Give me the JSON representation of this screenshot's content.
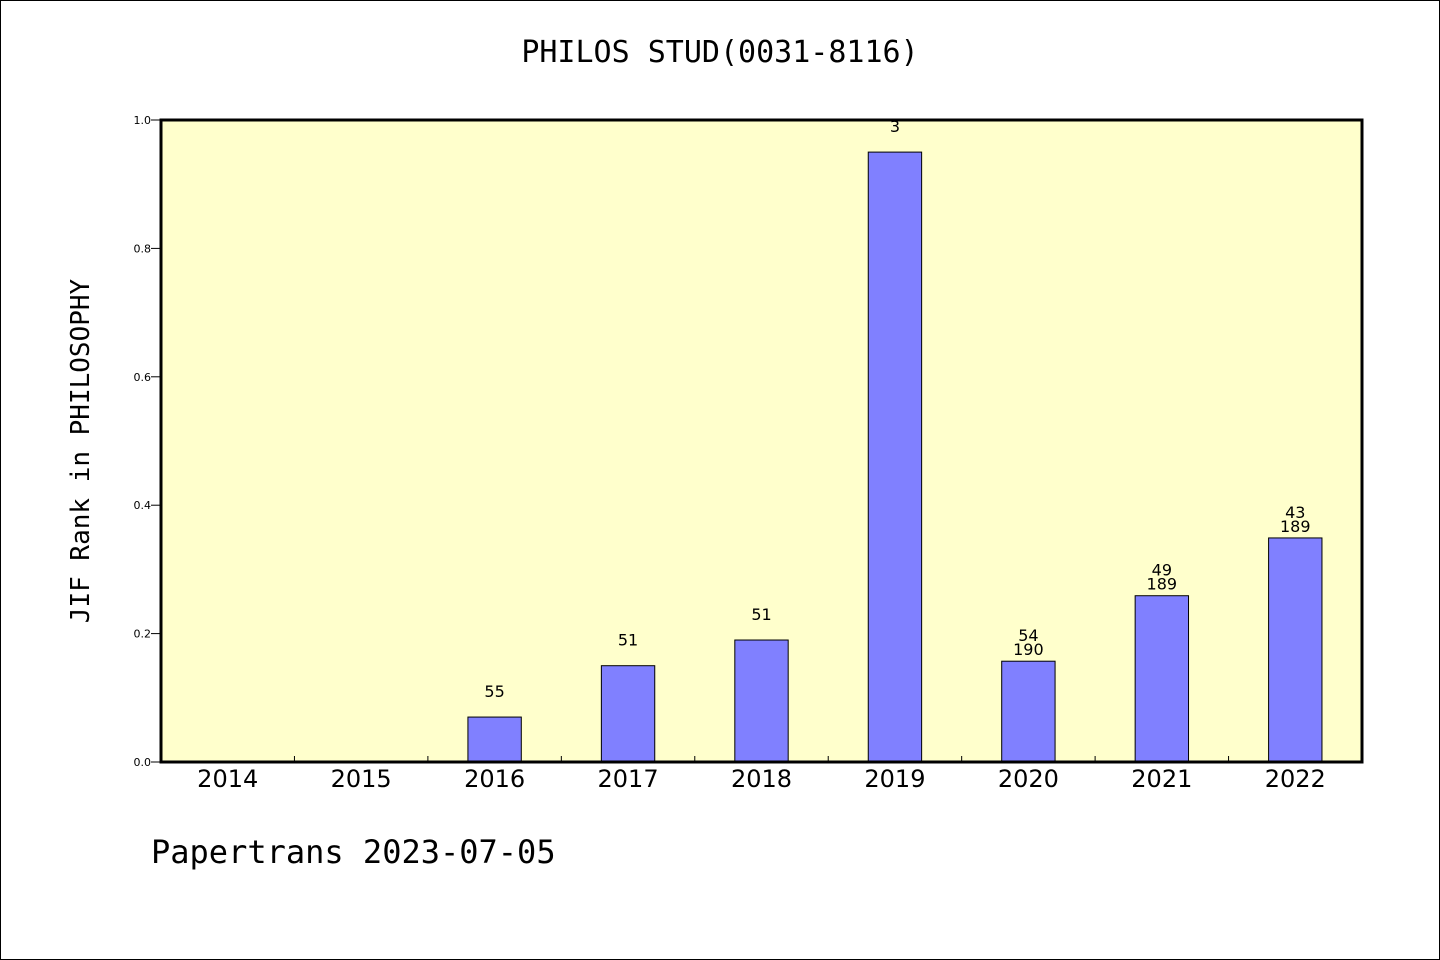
{
  "chart_data": {
    "type": "bar",
    "title": "PHILOS STUD(0031-8116)",
    "xlabel": "",
    "ylabel": "JIF Rank in PHILOSOPHY",
    "ylim": [
      0,
      1.0
    ],
    "yticks": [
      "0.0",
      "0.2",
      "0.4",
      "0.6",
      "0.8",
      "1.0"
    ],
    "grid": false,
    "categories": [
      "2014",
      "2015",
      "2016",
      "2017",
      "2018",
      "2019",
      "2020",
      "2021",
      "2022"
    ],
    "values": [
      null,
      null,
      0.07,
      0.15,
      0.19,
      0.95,
      0.157,
      0.259,
      0.349
    ],
    "rank_labels": [
      "",
      "",
      "55",
      "51",
      "51",
      "3",
      "54",
      "49",
      "43"
    ],
    "total_labels": [
      "",
      "",
      "",
      "",
      "",
      "",
      "190",
      "189",
      "189"
    ],
    "colors": {
      "plot_background": "#ffffcc",
      "bar_fill": "#8080ff",
      "bar_stroke": "#000000"
    }
  },
  "footer": "Papertrans 2023-07-05"
}
